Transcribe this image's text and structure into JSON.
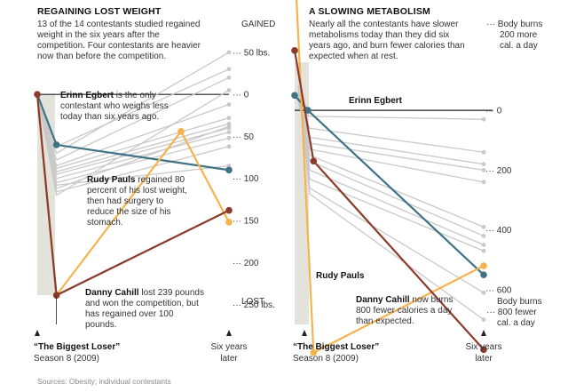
{
  "colors": {
    "grey_line": "#c9c9c9",
    "erinn": "#3f7285",
    "rudy": "#f5b34d",
    "danny": "#8b3b2c",
    "band": "#e3e3dc",
    "axis": "#222222"
  },
  "source": "Sources: Obesity; individual contestants",
  "chart_data": [
    {
      "type": "line",
      "title": "REGAINING LOST WEIGHT",
      "subtitle": [
        "13 of the 14 contestants studied regained",
        "weight in the six years after the",
        "competition. Four contestants are heavier",
        "now than before the competition."
      ],
      "x_labels": {
        "start": "“The Biggest Loser”",
        "start_sub": "Season 8 (2009)",
        "end": [
          "Six years",
          "later"
        ]
      },
      "y_ticks": [
        {
          "value": -50,
          "text": "50 lbs."
        },
        {
          "value": 0,
          "text": "0"
        },
        {
          "value": 50,
          "text": "50"
        },
        {
          "value": 100,
          "text": "100"
        },
        {
          "value": 150,
          "text": "150"
        },
        {
          "value": 200,
          "text": "200"
        },
        {
          "value": 250,
          "text": "250 lbs."
        }
      ],
      "y_top_label": "GAINED",
      "y_bottom_label": "LOST",
      "ylim": [
        -70,
        260
      ],
      "grey_series": [
        {
          "start": 62,
          "end": -30
        },
        {
          "start": 70,
          "end": -50
        },
        {
          "start": 78,
          "end": -20
        },
        {
          "start": 85,
          "end": 12
        },
        {
          "start": 88,
          "end": 28
        },
        {
          "start": 92,
          "end": 35
        },
        {
          "start": 95,
          "end": 40
        },
        {
          "start": 100,
          "end": 45
        },
        {
          "start": 105,
          "end": 52
        },
        {
          "start": 108,
          "end": 85
        },
        {
          "start": 112,
          "end": 38
        },
        {
          "start": 116,
          "end": 62
        },
        {
          "start": 120,
          "end": -5
        }
      ],
      "highlight_series": [
        {
          "key": "erinn",
          "name": "Erinn Egbert",
          "points": [
            [
              0,
              0
            ],
            [
              0.1,
              60
            ],
            [
              1,
              90
            ]
          ]
        },
        {
          "key": "rudy",
          "name": "Rudy Pauls",
          "points": [
            [
              0,
              0
            ],
            [
              0.1,
              239
            ],
            [
              0.75,
              44
            ],
            [
              1,
              152
            ]
          ]
        },
        {
          "key": "danny",
          "name": "Danny Cahill",
          "points": [
            [
              0,
              0
            ],
            [
              0.1,
              239
            ],
            [
              1,
              138
            ]
          ]
        }
      ],
      "annotations": [
        {
          "bold": "Erinn Egbert",
          "lines": [
            " is the only",
            "contestant who weighs less",
            "today than six years ago."
          ]
        },
        {
          "bold": "Rudy Pauls",
          "lines": [
            " regained 80",
            "percent of his lost weight,",
            "then had surgery to",
            "reduce the size of his",
            "stomach."
          ]
        },
        {
          "bold": "Danny Cahill",
          "lines": [
            " lost 239 pounds",
            "and won the competition, but",
            "has regained over 100",
            "pounds."
          ]
        }
      ]
    },
    {
      "type": "line",
      "title": "A SLOWING METABOLISM",
      "subtitle": [
        "Nearly all the contestants have slower",
        "metabolisms today than they did six",
        "years ago, and burn fewer calories than",
        "expected when at rest."
      ],
      "x_labels": {
        "start": "“The Biggest Loser”",
        "start_sub": "Season 8 (2009)",
        "end": [
          "Six years",
          "later"
        ]
      },
      "y_top_label": [
        "Body burns",
        "200 more",
        "cal. a day"
      ],
      "y_bottom_label": [
        "Body burns",
        "800 fewer",
        "cal. a day"
      ],
      "y_ticks": [
        {
          "value": 0,
          "text": "0"
        },
        {
          "value": 200,
          "text": "200"
        },
        {
          "value": 400,
          "text": "400"
        },
        {
          "value": 600,
          "text": "600"
        }
      ],
      "ylim": [
        -250,
        820
      ],
      "grey_series": [
        {
          "start": 20,
          "end": 30
        },
        {
          "start": 60,
          "end": 140
        },
        {
          "start": 90,
          "end": 180
        },
        {
          "start": 110,
          "end": 200
        },
        {
          "start": 130,
          "end": 240
        },
        {
          "start": 150,
          "end": 390
        },
        {
          "start": 170,
          "end": 420
        },
        {
          "start": 200,
          "end": 450
        },
        {
          "start": 230,
          "end": 470
        },
        {
          "start": 260,
          "end": 610
        },
        {
          "start": 280,
          "end": 700
        }
      ],
      "highlight_series": [
        {
          "key": "erinn",
          "name": "Erinn Egbert",
          "points": [
            [
              0,
              -50
            ],
            [
              0.07,
              0
            ],
            [
              1,
              550
            ]
          ]
        },
        {
          "key": "rudy",
          "name": "Rudy Pauls",
          "points": [
            [
              0,
              -500
            ],
            [
              0.1,
              810
            ],
            [
              1,
              520
            ]
          ]
        },
        {
          "key": "danny",
          "name": "Danny Cahill",
          "points": [
            [
              0,
              -200
            ],
            [
              0.1,
              170
            ],
            [
              1,
              800
            ]
          ]
        }
      ],
      "annotations": [
        {
          "bold": "Erinn Egbert",
          "lines": []
        },
        {
          "bold": "Rudy Pauls",
          "lines": []
        },
        {
          "bold": "Danny Cahill",
          "lines": [
            " now burns",
            "800 fewer calories a day",
            "than expected."
          ]
        }
      ]
    }
  ]
}
